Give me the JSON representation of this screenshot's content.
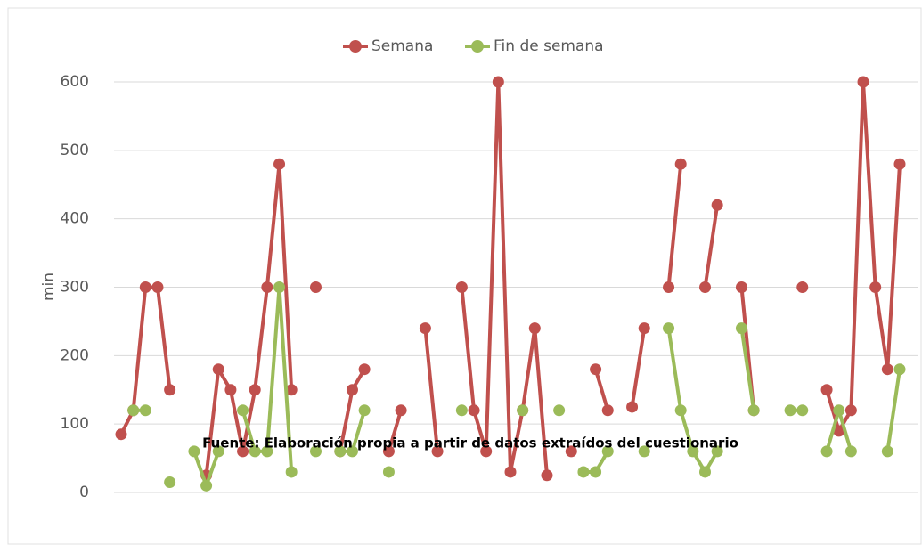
{
  "chart_data": {
    "type": "line",
    "y_label": "min",
    "annotation": "Fuente: Elaboración propia a partir de datos extraídos del cuestionario",
    "categories": [
      null,
      null,
      null,
      null,
      null,
      null,
      null,
      null,
      null,
      null,
      null,
      null,
      null,
      null,
      null,
      null,
      null,
      null,
      null,
      null,
      null,
      null,
      null,
      null,
      null,
      null,
      null,
      null,
      null,
      null,
      null,
      null,
      null,
      null,
      null,
      null,
      null,
      null,
      null,
      null,
      null,
      null,
      null,
      null,
      null,
      null,
      null,
      null,
      null,
      null,
      null,
      null,
      null,
      null,
      null,
      null,
      null,
      null,
      null,
      null,
      null,
      null,
      null,
      null,
      null
    ],
    "series": [
      {
        "name": "Semana",
        "color": "#c0504d",
        "values": [
          85,
          120,
          300,
          300,
          150,
          null,
          null,
          25,
          180,
          150,
          60,
          150,
          300,
          480,
          150,
          null,
          300,
          null,
          60,
          150,
          180,
          null,
          60,
          120,
          null,
          240,
          60,
          null,
          300,
          120,
          60,
          600,
          30,
          120,
          240,
          25,
          null,
          60,
          null,
          180,
          120,
          null,
          125,
          240,
          null,
          300,
          480,
          null,
          300,
          420,
          null,
          300,
          120,
          null,
          null,
          null,
          300,
          null,
          150,
          90,
          120,
          600,
          300,
          180,
          480
        ]
      },
      {
        "name": "Fin de semana",
        "color": "#9bbb59",
        "values": [
          null,
          120,
          120,
          null,
          15,
          null,
          60,
          10,
          60,
          null,
          120,
          60,
          60,
          300,
          30,
          null,
          60,
          null,
          60,
          60,
          120,
          null,
          30,
          null,
          null,
          null,
          null,
          null,
          120,
          null,
          null,
          null,
          null,
          120,
          null,
          null,
          120,
          null,
          30,
          30,
          60,
          null,
          null,
          60,
          null,
          240,
          120,
          60,
          30,
          60,
          null,
          240,
          120,
          null,
          null,
          120,
          120,
          null,
          60,
          120,
          60,
          null,
          null,
          60,
          180
        ]
      }
    ],
    "ylim": [
      0,
      600
    ],
    "yticks": [
      0,
      100,
      200,
      300,
      400,
      500,
      600
    ],
    "grid": true,
    "legend": "top"
  }
}
